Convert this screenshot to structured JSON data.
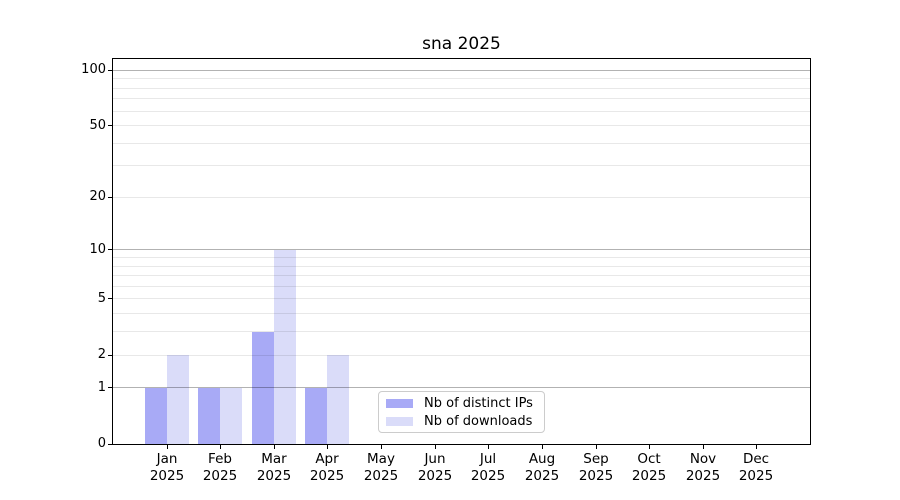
{
  "chart_data": {
    "type": "bar",
    "title": "sna 2025",
    "categories": [
      "Jan",
      "Feb",
      "Mar",
      "Apr",
      "May",
      "Jun",
      "Jul",
      "Aug",
      "Sep",
      "Oct",
      "Nov",
      "Dec"
    ],
    "x_tick_year": "2025",
    "series": [
      {
        "name": "Nb of distinct IPs",
        "color": "#a8aaf6",
        "values": [
          1,
          1,
          3,
          1,
          0,
          0,
          0,
          0,
          0,
          0,
          0,
          0
        ]
      },
      {
        "name": "Nb of downloads",
        "color": "#dadcf9",
        "values": [
          2,
          1,
          10,
          2,
          0,
          0,
          0,
          0,
          0,
          0,
          0,
          0
        ]
      }
    ],
    "y_axis": {
      "scale": "log10(value+1)",
      "ticks": [
        0,
        1,
        2,
        5,
        10,
        20,
        50,
        100
      ],
      "major_gridlines": [
        1,
        10,
        100
      ],
      "minor_gridlines": [
        2,
        3,
        4,
        5,
        6,
        7,
        8,
        9,
        20,
        30,
        40,
        50,
        60,
        70,
        80,
        90
      ],
      "min": 0,
      "max": 115
    },
    "xlabel": "",
    "ylabel": "",
    "grid": true,
    "legend": {
      "position": "inside-bottom-center",
      "entries": [
        "Nb of distinct IPs",
        "Nb of downloads"
      ]
    },
    "colors": {
      "background": "#ffffff",
      "axis": "#000000",
      "text": "#000000",
      "major_grid": "#b3b3b3",
      "minor_grid": "#e9e9e9",
      "legend_border": "#cccccc"
    }
  }
}
